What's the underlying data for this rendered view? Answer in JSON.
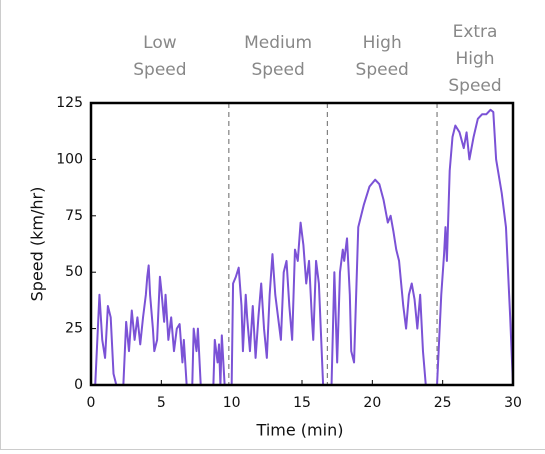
{
  "chart_data": {
    "type": "line",
    "xlabel": "Time (min)",
    "ylabel": "Speed (km/hr)",
    "xlim": [
      0,
      30
    ],
    "xticks": [
      0,
      5,
      10,
      15,
      20,
      25,
      30
    ],
    "ylim": [
      0,
      125
    ],
    "yticks": [
      0,
      25,
      50,
      75,
      100,
      125
    ],
    "phases": [
      {
        "label_lines": [
          "Low",
          "Speed"
        ]
      },
      {
        "label_lines": [
          "Medium",
          "Speed"
        ]
      },
      {
        "label_lines": [
          "High",
          "Speed"
        ]
      },
      {
        "label_lines": [
          "Extra",
          "High",
          "Speed"
        ]
      }
    ],
    "phase_boundaries": [
      9.8,
      16.8,
      24.6
    ],
    "x": [
      0,
      0.3,
      0.6,
      0.8,
      1.0,
      1.2,
      1.4,
      1.6,
      1.8,
      2.3,
      2.5,
      2.7,
      2.9,
      3.1,
      3.3,
      3.5,
      3.7,
      3.9,
      4.0,
      4.1,
      4.2,
      4.4,
      4.5,
      4.7,
      4.9,
      5.0,
      5.2,
      5.3,
      5.5,
      5.7,
      5.9,
      6.1,
      6.3,
      6.5,
      6.6,
      6.8,
      7.2,
      7.3,
      7.5,
      7.6,
      7.8,
      8.7,
      8.8,
      9.0,
      9.1,
      9.2,
      9.3,
      9.5,
      9.8,
      10.0,
      10.1,
      10.3,
      10.5,
      10.7,
      10.8,
      11.0,
      11.1,
      11.3,
      11.5,
      11.7,
      11.9,
      12.1,
      12.3,
      12.5,
      12.7,
      12.9,
      13.1,
      13.3,
      13.5,
      13.7,
      13.9,
      14.1,
      14.3,
      14.5,
      14.7,
      14.9,
      15.1,
      15.3,
      15.5,
      15.7,
      15.8,
      16.0,
      16.2,
      16.3,
      16.5,
      16.9,
      17.1,
      17.3,
      17.4,
      17.5,
      17.7,
      17.9,
      18.0,
      18.2,
      18.4,
      18.5,
      18.7,
      18.8,
      19.0,
      19.4,
      19.8,
      20.2,
      20.5,
      20.8,
      21.1,
      21.3,
      21.5,
      21.7,
      21.9,
      22.2,
      22.4,
      22.6,
      22.8,
      23.0,
      23.2,
      23.4,
      23.6,
      23.8,
      24.3,
      24.6,
      24.9,
      25.1,
      25.2,
      25.3,
      25.5,
      25.7,
      25.9,
      26.2,
      26.5,
      26.7,
      26.9,
      27.2,
      27.5,
      27.8,
      28.1,
      28.4,
      28.6,
      28.8,
      29.2,
      29.5,
      29.8,
      30
    ],
    "series": [
      {
        "color": "#7b52d6",
        "values": [
          0,
          0,
          40,
          20,
          12,
          35,
          30,
          5,
          0,
          0,
          28,
          15,
          33,
          20,
          30,
          18,
          30,
          40,
          48,
          53,
          40,
          25,
          15,
          20,
          48,
          42,
          28,
          40,
          20,
          30,
          15,
          25,
          27,
          10,
          20,
          0,
          0,
          25,
          15,
          25,
          0,
          0,
          20,
          10,
          18,
          0,
          22,
          0,
          0,
          0,
          45,
          48,
          52,
          35,
          15,
          40,
          30,
          15,
          35,
          12,
          30,
          45,
          25,
          12,
          40,
          58,
          40,
          30,
          20,
          50,
          55,
          35,
          20,
          60,
          55,
          72,
          62,
          45,
          55,
          30,
          20,
          55,
          45,
          30,
          0,
          0,
          0,
          50,
          30,
          10,
          50,
          60,
          55,
          65,
          40,
          15,
          10,
          30,
          70,
          80,
          88,
          91,
          89,
          82,
          72,
          75,
          68,
          60,
          55,
          35,
          25,
          40,
          45,
          38,
          25,
          40,
          15,
          0,
          0,
          0,
          40,
          58,
          70,
          55,
          95,
          110,
          115,
          112,
          105,
          112,
          100,
          110,
          118,
          120,
          120,
          122,
          121,
          100,
          85,
          70,
          30,
          0
        ]
      }
    ]
  }
}
